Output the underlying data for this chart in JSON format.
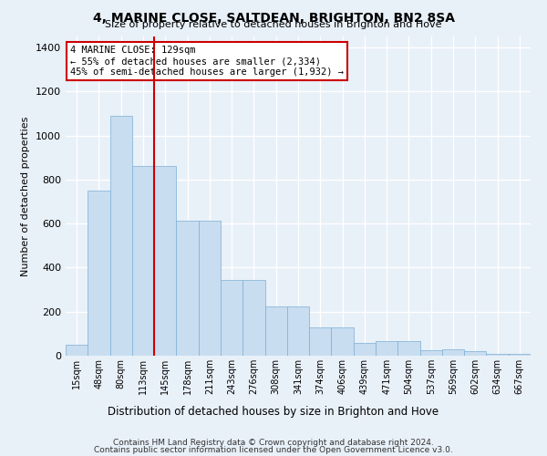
{
  "title": "4, MARINE CLOSE, SALTDEAN, BRIGHTON, BN2 8SA",
  "subtitle": "Size of property relative to detached houses in Brighton and Hove",
  "xlabel": "Distribution of detached houses by size in Brighton and Hove",
  "ylabel": "Number of detached properties",
  "footnote1": "Contains HM Land Registry data © Crown copyright and database right 2024.",
  "footnote2": "Contains public sector information licensed under the Open Government Licence v3.0.",
  "categories": [
    "15sqm",
    "48sqm",
    "80sqm",
    "113sqm",
    "145sqm",
    "178sqm",
    "211sqm",
    "243sqm",
    "276sqm",
    "308sqm",
    "341sqm",
    "374sqm",
    "406sqm",
    "439sqm",
    "471sqm",
    "504sqm",
    "537sqm",
    "569sqm",
    "602sqm",
    "634sqm",
    "667sqm"
  ],
  "values": [
    50,
    750,
    1090,
    860,
    860,
    615,
    615,
    345,
    345,
    225,
    225,
    130,
    130,
    60,
    65,
    65,
    25,
    30,
    20,
    10,
    10
  ],
  "bar_color": "#c9ddf0",
  "bar_edge_color": "#7bafd4",
  "background_color": "#e8f0f8",
  "grid_color": "#ffffff",
  "property_line_x": 3.5,
  "annotation_line1": "4 MARINE CLOSE: 129sqm",
  "annotation_line2": "← 55% of detached houses are smaller (2,334)",
  "annotation_line3": "45% of semi-detached houses are larger (1,932) →",
  "annotation_box_color": "#ffffff",
  "annotation_box_edge": "#cc0000",
  "vline_color": "#cc0000",
  "ylim": [
    0,
    1450
  ],
  "yticks": [
    0,
    200,
    400,
    600,
    800,
    1000,
    1200,
    1400
  ]
}
